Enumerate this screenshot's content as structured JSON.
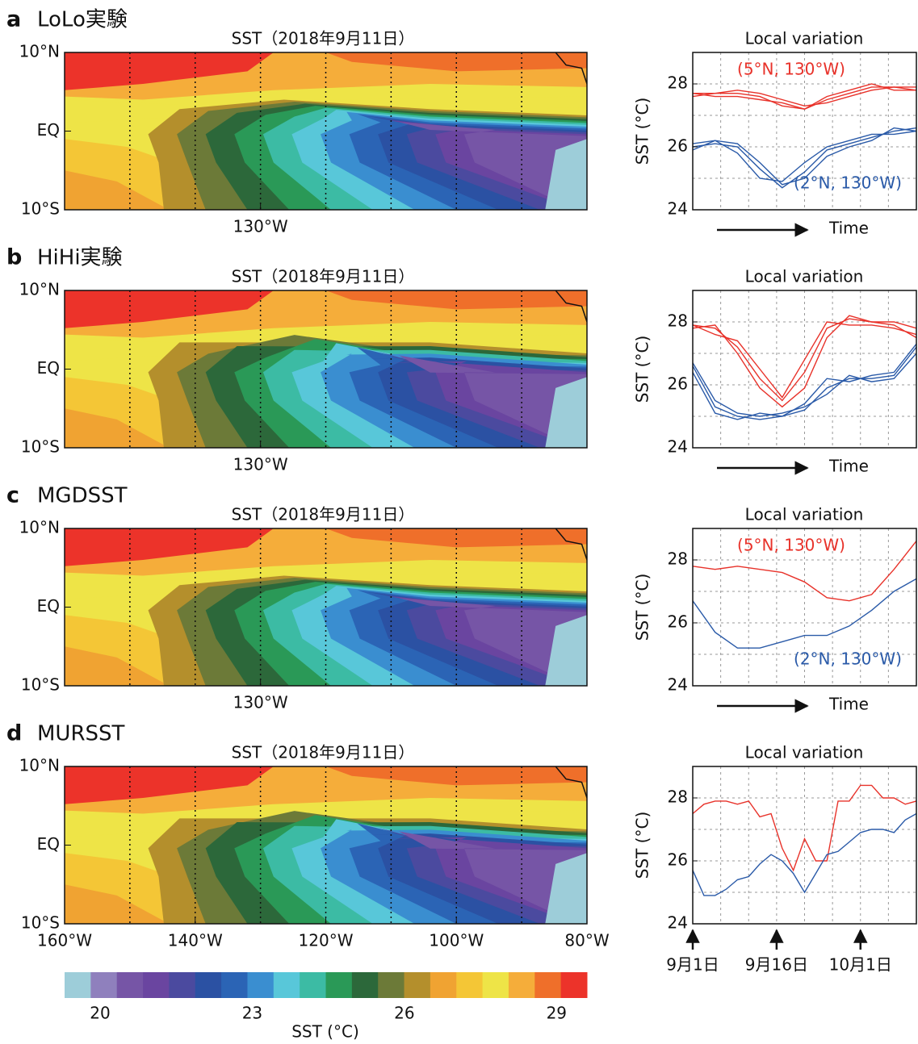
{
  "chart_data": [
    {
      "type": "map",
      "panel": "a",
      "panel_title": "LoLo実験",
      "title": "SST（2018年9月11日）",
      "xlim": [
        -160,
        -80
      ],
      "ylim": [
        -10,
        10
      ],
      "xticks": [
        {
          "value": -130,
          "label": "130°W"
        }
      ],
      "yticks": [
        {
          "value": 10,
          "label": "10°N"
        },
        {
          "value": 0,
          "label": "EQ"
        },
        {
          "value": -10,
          "label": "10°S"
        }
      ],
      "xgrid": [
        -150,
        -140,
        -130,
        -120,
        -110,
        -100,
        -90
      ]
    },
    {
      "type": "map",
      "panel": "b",
      "panel_title": "HiHi実験",
      "title": "SST（2018年9月11日）",
      "xlim": [
        -160,
        -80
      ],
      "ylim": [
        -10,
        10
      ],
      "xticks": [
        {
          "value": -130,
          "label": "130°W"
        }
      ],
      "yticks": [
        {
          "value": 10,
          "label": "10°N"
        },
        {
          "value": 0,
          "label": "EQ"
        },
        {
          "value": -10,
          "label": "10°S"
        }
      ],
      "xgrid": [
        -150,
        -140,
        -130,
        -120,
        -110,
        -100,
        -90
      ]
    },
    {
      "type": "map",
      "panel": "c",
      "panel_title": "MGDSST",
      "title": "SST（2018年9月11日）",
      "xlim": [
        -160,
        -80
      ],
      "ylim": [
        -10,
        10
      ],
      "xticks": [
        {
          "value": -130,
          "label": "130°W"
        }
      ],
      "yticks": [
        {
          "value": 10,
          "label": "10°N"
        },
        {
          "value": 0,
          "label": "EQ"
        },
        {
          "value": -10,
          "label": "10°S"
        }
      ],
      "xgrid": [
        -150,
        -140,
        -130,
        -120,
        -110,
        -100,
        -90
      ]
    },
    {
      "type": "map",
      "panel": "d",
      "panel_title": "MURSST",
      "title": "SST（2018年9月11日）",
      "xlim": [
        -160,
        -80
      ],
      "ylim": [
        -10,
        10
      ],
      "xticks": [
        {
          "value": -160,
          "label": "160°W"
        },
        {
          "value": -140,
          "label": "140°W"
        },
        {
          "value": -120,
          "label": "120°W"
        },
        {
          "value": -100,
          "label": "100°W"
        },
        {
          "value": -80,
          "label": "80°W"
        }
      ],
      "yticks": [
        {
          "value": 10,
          "label": "10°N"
        },
        {
          "value": 0,
          "label": "EQ"
        },
        {
          "value": -10,
          "label": "10°S"
        }
      ],
      "xgrid": [
        -150,
        -140,
        -130,
        -120,
        -110,
        -100,
        -90
      ]
    },
    {
      "type": "line",
      "title": "Local variation",
      "ylabel": "SST (°C)",
      "xlabel": "Time",
      "xlim": [
        0,
        40
      ],
      "ylim": [
        24,
        29
      ],
      "yticks": [
        24,
        26,
        28
      ],
      "ygrid": [
        25,
        26,
        27,
        28
      ],
      "xgrid": [
        5,
        10,
        15,
        20,
        25,
        30,
        35
      ],
      "x": [
        0,
        4,
        8,
        12,
        16,
        20,
        24,
        28,
        32,
        36,
        40
      ],
      "series": [
        {
          "name": "(5°N, 130°W)",
          "color": "#e8322a",
          "values": [
            27.7,
            27.6,
            27.6,
            27.5,
            27.4,
            27.2,
            27.5,
            27.7,
            27.9,
            27.9,
            27.9
          ]
        },
        {
          "color": "#e8322a",
          "values": [
            27.7,
            27.7,
            27.8,
            27.7,
            27.5,
            27.3,
            27.4,
            27.6,
            27.8,
            27.9,
            27.8
          ]
        },
        {
          "color": "#e8322a",
          "values": [
            27.6,
            27.7,
            27.7,
            27.6,
            27.3,
            27.2,
            27.6,
            27.8,
            28.0,
            27.8,
            27.8
          ]
        },
        {
          "name": "(2°N, 130°W)",
          "color": "#2a5aa8",
          "values": [
            26.0,
            26.1,
            26.0,
            25.3,
            24.7,
            25.2,
            25.9,
            26.1,
            26.3,
            26.5,
            26.6
          ]
        },
        {
          "color": "#2a5aa8",
          "values": [
            26.1,
            26.2,
            25.8,
            25.0,
            24.9,
            25.5,
            26.0,
            26.2,
            26.4,
            26.4,
            26.5
          ]
        },
        {
          "color": "#2a5aa8",
          "values": [
            25.9,
            26.2,
            26.1,
            25.5,
            24.8,
            25.0,
            25.7,
            26.0,
            26.2,
            26.6,
            26.5
          ]
        }
      ]
    },
    {
      "type": "line",
      "title": "Local variation",
      "ylabel": "SST (°C)",
      "xlabel": "Time",
      "xlim": [
        0,
        40
      ],
      "ylim": [
        24,
        29
      ],
      "yticks": [
        24,
        26,
        28
      ],
      "ygrid": [
        25,
        26,
        27,
        28
      ],
      "xgrid": [
        5,
        10,
        15,
        20,
        25,
        30,
        35
      ],
      "x": [
        0,
        4,
        8,
        12,
        16,
        20,
        24,
        28,
        32,
        36,
        40
      ],
      "series": [
        {
          "color": "#e8322a",
          "values": [
            27.9,
            27.8,
            27.2,
            26.2,
            25.5,
            26.4,
            27.8,
            28.1,
            28.0,
            27.9,
            27.5
          ]
        },
        {
          "color": "#e8322a",
          "values": [
            27.8,
            27.9,
            27.0,
            25.9,
            25.3,
            25.9,
            27.5,
            28.2,
            28.0,
            28.0,
            27.8
          ]
        },
        {
          "color": "#e8322a",
          "values": [
            27.9,
            27.6,
            27.4,
            26.5,
            25.6,
            26.8,
            28.0,
            27.9,
            27.9,
            27.8,
            27.6
          ]
        },
        {
          "color": "#2a5aa8",
          "values": [
            26.6,
            25.3,
            25.0,
            24.9,
            25.0,
            25.2,
            25.9,
            26.2,
            26.2,
            26.3,
            27.2
          ]
        },
        {
          "color": "#2a5aa8",
          "values": [
            26.4,
            25.1,
            24.9,
            25.1,
            25.0,
            25.4,
            26.2,
            26.1,
            26.3,
            26.4,
            27.3
          ]
        },
        {
          "color": "#2a5aa8",
          "values": [
            26.7,
            25.5,
            25.1,
            25.0,
            25.1,
            25.3,
            25.7,
            26.3,
            26.1,
            26.2,
            27.0
          ]
        }
      ]
    },
    {
      "type": "line",
      "title": "Local variation",
      "ylabel": "SST (°C)",
      "xlabel": "Time",
      "xlim": [
        0,
        40
      ],
      "ylim": [
        24,
        29
      ],
      "yticks": [
        24,
        26,
        28
      ],
      "ygrid": [
        25,
        26,
        27,
        28
      ],
      "xgrid": [
        5,
        10,
        15,
        20,
        25,
        30,
        35
      ],
      "x": [
        0,
        4,
        8,
        12,
        16,
        20,
        24,
        28,
        32,
        36,
        40
      ],
      "series": [
        {
          "name": "(5°N, 130°W)",
          "color": "#e8322a",
          "values": [
            27.8,
            27.7,
            27.8,
            27.7,
            27.6,
            27.3,
            26.8,
            26.7,
            26.9,
            27.7,
            28.6
          ]
        },
        {
          "name": "(2°N, 130°W)",
          "color": "#2a5aa8",
          "values": [
            26.7,
            25.7,
            25.2,
            25.2,
            25.4,
            25.6,
            25.6,
            25.9,
            26.4,
            27.0,
            27.4
          ]
        }
      ]
    },
    {
      "type": "line",
      "title": "Local variation",
      "ylabel": "SST (°C)",
      "xlim": [
        0,
        40
      ],
      "ylim": [
        24,
        29
      ],
      "yticks": [
        24,
        26,
        28
      ],
      "ygrid": [
        25,
        26,
        27,
        28
      ],
      "xgrid": [
        5,
        10,
        15,
        20,
        25,
        30,
        35
      ],
      "xticks": [
        {
          "value": 0,
          "label": "9月1日"
        },
        {
          "value": 15,
          "label": "9月16日"
        },
        {
          "value": 30,
          "label": "10月1日"
        }
      ],
      "x": [
        0,
        2,
        4,
        6,
        8,
        10,
        12,
        14,
        16,
        18,
        20,
        22,
        24,
        26,
        28,
        30,
        32,
        34,
        36,
        38,
        40
      ],
      "series": [
        {
          "color": "#e8322a",
          "values": [
            27.5,
            27.8,
            27.9,
            27.9,
            27.8,
            27.9,
            27.4,
            27.5,
            26.4,
            25.7,
            26.7,
            26.0,
            26.0,
            27.9,
            27.9,
            28.4,
            28.4,
            28.0,
            28.0,
            27.8,
            27.9
          ]
        },
        {
          "color": "#2a5aa8",
          "values": [
            25.7,
            24.9,
            24.9,
            25.1,
            25.4,
            25.5,
            25.9,
            26.2,
            26.0,
            25.6,
            25.0,
            25.6,
            26.2,
            26.3,
            26.6,
            26.9,
            27.0,
            27.0,
            26.9,
            27.3,
            27.5
          ]
        }
      ]
    },
    {
      "type": "colorbar",
      "label": "SST (°C)",
      "lim": [
        19.3,
        29.6
      ],
      "ticks": [
        20,
        23,
        26,
        29
      ],
      "colors": [
        "#9dcdd9",
        "#8f80bd",
        "#7655a6",
        "#6a45a0",
        "#4b4a9f",
        "#2b51a3",
        "#2b64b5",
        "#3a8ed0",
        "#58c7d9",
        "#3cbba4",
        "#2a9957",
        "#2c683a",
        "#6c7a38",
        "#b48f2c",
        "#f0a332",
        "#f4c636",
        "#eee447",
        "#f5ad3a",
        "#ef6f2a",
        "#ec332a"
      ]
    }
  ]
}
